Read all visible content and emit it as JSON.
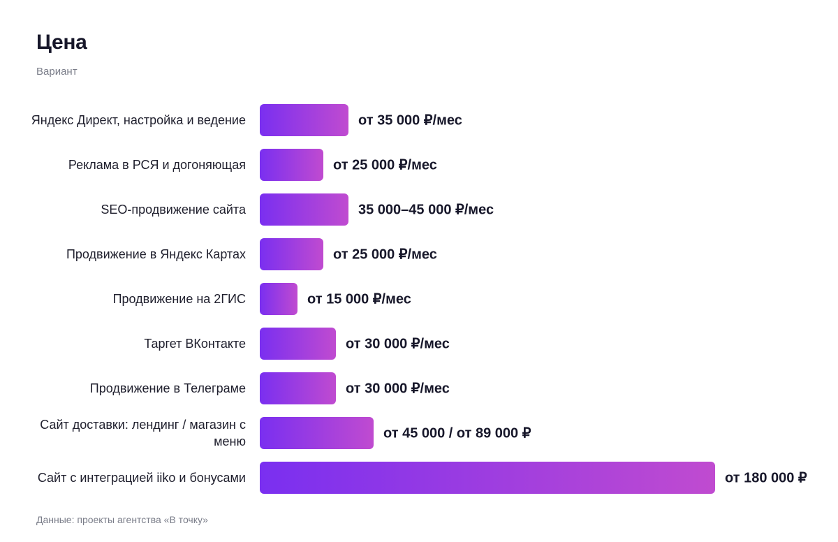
{
  "chart_data": {
    "type": "bar",
    "orientation": "horizontal",
    "title": "Цена",
    "subtitle": "Вариант",
    "source": "Данные: проекты агентства «В точку»",
    "accent_gradient": [
      "#7a2ff0",
      "#c04bd0"
    ],
    "categories": [
      "Яндекс Директ, настройка и ведение",
      "Реклама в РСЯ и догоняющая",
      "SEO-продвижение сайта",
      "Продвижение в Яндекс Картах",
      "Продвижение на 2ГИС",
      "Таргет ВКонтакте",
      "Продвижение в Телеграме",
      "Сайт доставки: лендинг / магазин с меню",
      "Сайт с интеграцией iiko и бонусами"
    ],
    "values": [
      35000,
      25000,
      35000,
      25000,
      15000,
      30000,
      30000,
      45000,
      180000
    ],
    "value_labels": [
      "от 35 000 ₽/мес",
      "от 25 000 ₽/мес",
      "35 000–45 000 ₽/мес",
      "от 25 000 ₽/мес",
      "от 15 000 ₽/мес",
      "от 30 000 ₽/мес",
      "от 30 000 ₽/мес",
      "от 45 000 / от 89 000 ₽",
      "от 180 000 ₽"
    ],
    "xlim": [
      0,
      180000
    ],
    "grid": false,
    "legend": "none"
  }
}
